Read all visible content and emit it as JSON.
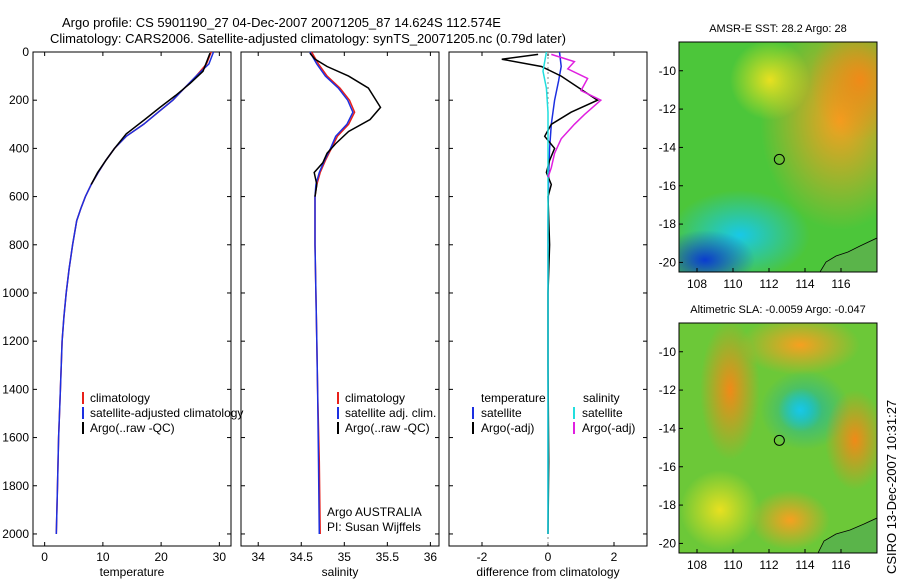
{
  "figure": {
    "title_line1": "Argo profile: CS 5901190_27 04-Dec-2007 20071205_87 14.624S 112.574E",
    "title_line2": "Climatology: CARS2006. Satellite-adjusted climatology: synTS_20071205.nc (0.79d later)",
    "side_label": "CSIRO 13-Dec-2007 10:31:27"
  },
  "colors": {
    "climatology": "#e8201a",
    "satellite": "#1c2fe0",
    "argo": "#000000",
    "cyan": "#22dede",
    "magenta": "#e020e0"
  },
  "chart_data": [
    {
      "id": "temperature",
      "type": "line",
      "xlabel": "temperature",
      "ylabel": "",
      "xlim": [
        -2,
        32
      ],
      "ylim": [
        2050,
        0
      ],
      "xticks": [
        0,
        10,
        20,
        30
      ],
      "xtick_labels": [
        "0",
        "10",
        "20",
        "30"
      ],
      "yticks": [
        0,
        200,
        400,
        600,
        800,
        1000,
        1200,
        1400,
        1600,
        1800,
        2000
      ],
      "ytick_labels": [
        "0",
        "200",
        "400",
        "600",
        "800",
        "1000",
        "1200",
        "1400",
        "1600",
        "1800",
        "2000"
      ],
      "legend": [
        "climatology",
        "satellite-adjusted climatology",
        "Argo(..raw -QC)"
      ],
      "series": [
        {
          "name": "climatology",
          "color": "#e8201a",
          "x": [
            28.6,
            27.8,
            26.0,
            24.0,
            22.0,
            19.5,
            17.0,
            14.0,
            12.0,
            10.5,
            9.2,
            8.0,
            7.0,
            6.2,
            5.5,
            4.8,
            4.2,
            3.7,
            3.3,
            3.0,
            2.7,
            2.4,
            2.2,
            2.0
          ],
          "y": [
            0,
            50,
            100,
            150,
            200,
            250,
            300,
            350,
            400,
            450,
            500,
            550,
            600,
            650,
            700,
            800,
            900,
            1000,
            1100,
            1200,
            1400,
            1600,
            1800,
            2000
          ]
        },
        {
          "name": "satellite-adjusted climatology",
          "color": "#1c2fe0",
          "x": [
            29.0,
            28.2,
            26.0,
            24.0,
            22.0,
            19.5,
            17.0,
            14.0,
            12.0,
            10.5,
            9.2,
            8.0,
            7.0,
            6.2,
            5.5,
            4.8,
            4.2,
            3.7,
            3.3,
            3.0,
            2.7,
            2.4,
            2.2,
            2.0
          ],
          "y": [
            0,
            50,
            100,
            150,
            200,
            250,
            300,
            350,
            400,
            450,
            500,
            550,
            600,
            650,
            700,
            800,
            900,
            1000,
            1100,
            1200,
            1400,
            1600,
            1800,
            2000
          ]
        },
        {
          "name": "Argo(..raw -QC)",
          "color": "#000000",
          "x": [
            28.4,
            28.0,
            27.2,
            25.0,
            22.5,
            19.8,
            17.2,
            14.0,
            12.0,
            10.5,
            9.1,
            8.0
          ],
          "y": [
            5,
            30,
            80,
            130,
            180,
            230,
            280,
            340,
            400,
            450,
            500,
            550
          ]
        }
      ]
    },
    {
      "id": "salinity",
      "type": "line",
      "xlabel": "salinity",
      "ylabel": "",
      "xlim": [
        33.8,
        36.1
      ],
      "ylim": [
        2050,
        0
      ],
      "xticks": [
        34,
        34.5,
        35,
        35.5,
        36
      ],
      "xtick_labels": [
        "34",
        "34.5",
        "35",
        "35.5",
        "36"
      ],
      "legend": [
        "climatology",
        "satellite adj. clim.",
        "Argo(..raw -QC)"
      ],
      "annotation": [
        "Argo AUSTRALIA",
        "PI: Susan Wijffels"
      ],
      "series": [
        {
          "name": "climatology",
          "color": "#e8201a",
          "x": [
            34.62,
            34.7,
            34.8,
            34.95,
            35.06,
            35.12,
            35.05,
            34.92,
            34.85,
            34.78,
            34.72,
            34.68,
            34.66,
            34.66,
            34.67,
            34.68,
            34.69,
            34.71,
            34.72
          ],
          "y": [
            0,
            50,
            100,
            150,
            200,
            250,
            300,
            350,
            400,
            450,
            500,
            550,
            600,
            800,
            1000,
            1200,
            1400,
            1700,
            2000
          ]
        },
        {
          "name": "satellite adj. clim.",
          "color": "#1c2fe0",
          "x": [
            34.6,
            34.68,
            34.78,
            34.93,
            35.04,
            35.1,
            35.03,
            34.9,
            34.84,
            34.77,
            34.71,
            34.67,
            34.66,
            34.66,
            34.67,
            34.68,
            34.69,
            34.7,
            34.71
          ],
          "y": [
            0,
            50,
            100,
            150,
            200,
            250,
            300,
            350,
            400,
            450,
            500,
            550,
            600,
            800,
            1000,
            1200,
            1400,
            1700,
            2000
          ]
        },
        {
          "name": "Argo(..raw -QC)",
          "color": "#000000",
          "x": [
            34.6,
            34.66,
            34.8,
            35.05,
            35.28,
            35.42,
            35.3,
            35.05,
            34.9,
            34.8,
            34.75,
            34.65,
            34.68,
            34.66
          ],
          "y": [
            5,
            30,
            60,
            100,
            150,
            230,
            280,
            330,
            380,
            420,
            460,
            500,
            550,
            600
          ]
        }
      ]
    },
    {
      "id": "difference",
      "type": "line",
      "xlabel": "difference from climatology",
      "ylabel": "",
      "xlim": [
        -3,
        3
      ],
      "ylim": [
        2050,
        0
      ],
      "xticks": [
        -2,
        0,
        2
      ],
      "xtick_labels": [
        "-2",
        "0",
        "2"
      ],
      "legend_headers": [
        "temperature",
        "salinity"
      ],
      "legend": [
        "satellite",
        "Argo(-adj)",
        "satellite",
        "Argo(-adj)"
      ],
      "series": [
        {
          "name": "satellite",
          "color": "#1c2fe0",
          "x": [
            0.35,
            0.4,
            0.32,
            0.2,
            0.1,
            0.05,
            0.02,
            0.0,
            0.0,
            0.0
          ],
          "y": [
            0,
            60,
            120,
            200,
            300,
            400,
            500,
            700,
            1000,
            2000
          ]
        },
        {
          "name": "Argo(-adj)",
          "color": "#000000",
          "x": [
            -0.3,
            -1.4,
            -0.2,
            0.4,
            1.5,
            0.7,
            0.1,
            -0.1,
            0.2,
            0.05,
            -0.05,
            0.1,
            0.0,
            0.05,
            0.0,
            0.0,
            0.02,
            0.0
          ],
          "y": [
            10,
            30,
            60,
            100,
            200,
            250,
            300,
            350,
            400,
            450,
            500,
            550,
            600,
            800,
            1000,
            1300,
            1700,
            2000
          ]
        },
        {
          "name": "satellite",
          "color": "#22dede",
          "x": [
            -0.05,
            -0.15,
            -0.05,
            0.0,
            0.0,
            0.0,
            0.0,
            0.0,
            0.0,
            0.0
          ],
          "y": [
            0,
            80,
            150,
            250,
            400,
            600,
            800,
            1200,
            1600,
            2000
          ]
        },
        {
          "name": "Argo(-adj)",
          "color": "#e020e0",
          "x": [
            0.1,
            0.8,
            0.6,
            1.2,
            1.0,
            1.6,
            1.1,
            0.8,
            0.4,
            0.2,
            0.1,
            0.0
          ],
          "y": [
            10,
            40,
            70,
            110,
            160,
            200,
            260,
            300,
            360,
            420,
            480,
            520
          ]
        }
      ]
    },
    {
      "id": "sst_map",
      "type": "heatmap",
      "title": "AMSR-E SST: 28.2 Argo: 28",
      "xlim": [
        107,
        118
      ],
      "ylim": [
        -20.5,
        -8.5
      ],
      "xticks": [
        108,
        110,
        112,
        114,
        116
      ],
      "yticks": [
        -10,
        -12,
        -14,
        -16,
        -18,
        -20
      ],
      "marker": {
        "lon": 112.574,
        "lat": -14.624
      }
    },
    {
      "id": "sla_map",
      "type": "heatmap",
      "title": "Altimetric SLA: -0.0059 Argo: -0.047",
      "xlim": [
        107,
        118
      ],
      "ylim": [
        -20.5,
        -8.5
      ],
      "xticks": [
        108,
        110,
        112,
        114,
        116
      ],
      "yticks": [
        -10,
        -12,
        -14,
        -16,
        -18,
        -20
      ],
      "marker": {
        "lon": 112.574,
        "lat": -14.624
      }
    }
  ]
}
